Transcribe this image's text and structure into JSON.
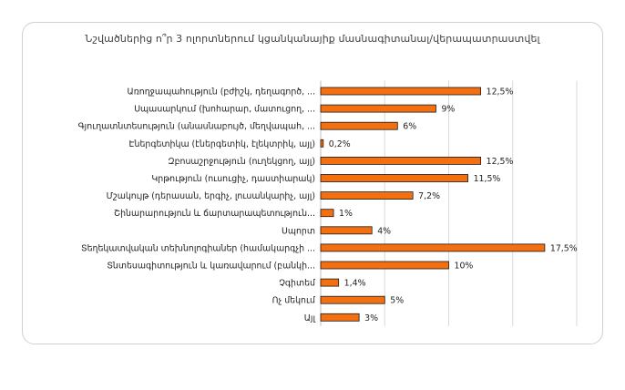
{
  "chart_data": {
    "type": "bar",
    "orientation": "horizontal",
    "title": "Նշվածներից ո՞ր 3 ոլորտներում կցանկանայիք մասնագիտանալ/վերապատրաստվել",
    "categories": [
      "Առողջապահություն (բժիշկ, դեղագործ, ...",
      "Սպասարկում (խոհարար, մատուցող, ...",
      "Գյուղատնտեսություն (անասնաբույծ, մեղվապահ, ...",
      "Էներգետիկա (էներգետիկ, էլեկտրիկ, այլ)",
      "Զբոսաշրջություն (ուղեկցող, այլ)",
      "Կրթություն (ուսուցիչ, դաստիարակ)",
      "Մշակույթ (դերասան, երգիչ, լուսանկարիչ, այլ)",
      "Շինարարություն և ճարտարապետություն...",
      "Սպորտ",
      "Տեղեկատվական տեխնոլոգիաներ (համակարգչի ...",
      "Տնտեսագիտություն և կառավարում (բանկի...",
      "Չգիտեմ",
      "Ոչ մեկում",
      "Այլ"
    ],
    "values": [
      12.5,
      9,
      6,
      0.2,
      12.5,
      11.5,
      7.2,
      1,
      4,
      17.5,
      10,
      1.4,
      5,
      3
    ],
    "value_labels": [
      "12,5%",
      "9%",
      "6%",
      "0,2%",
      "12,5%",
      "11,5%",
      "7,2%",
      "1%",
      "4%",
      "17,5%",
      "10%",
      "1,4%",
      "5%",
      "3%"
    ],
    "xlim": [
      0,
      20
    ],
    "grid": true,
    "bar_color": "#F36F10",
    "bar_edge_color": "#1a1a1a",
    "grid_color": "#d9d9d9"
  }
}
